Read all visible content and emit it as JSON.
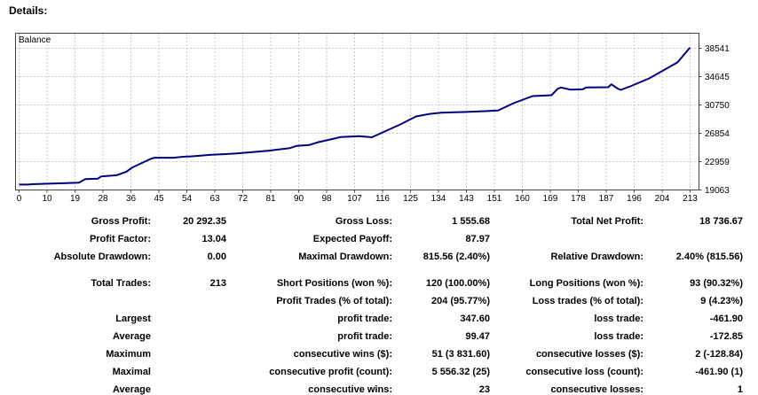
{
  "header": {
    "title": "Details:"
  },
  "chart_data": {
    "type": "line",
    "title": "Balance",
    "legend": "Balance",
    "line_color": "#000080",
    "grid": true,
    "x_ticks": [
      0,
      10,
      19,
      28,
      36,
      45,
      54,
      63,
      72,
      81,
      90,
      98,
      107,
      116,
      125,
      134,
      143,
      151,
      160,
      169,
      178,
      187,
      196,
      204,
      213
    ],
    "y_ticks": [
      38541,
      34645,
      30750,
      26854,
      22959,
      19063
    ],
    "xlabel": "",
    "ylabel": "",
    "x_range": [
      0,
      213
    ],
    "y_range": [
      19063,
      38541
    ],
    "points": [
      [
        0,
        19800
      ],
      [
        3,
        19800
      ],
      [
        4,
        19860
      ],
      [
        8,
        19915
      ],
      [
        14,
        19990
      ],
      [
        19,
        20060
      ],
      [
        21,
        20550
      ],
      [
        25,
        20620
      ],
      [
        26,
        20910
      ],
      [
        31,
        21100
      ],
      [
        34,
        21560
      ],
      [
        36,
        22170
      ],
      [
        39,
        22780
      ],
      [
        42,
        23380
      ],
      [
        43,
        23495
      ],
      [
        49,
        23495
      ],
      [
        52,
        23630
      ],
      [
        55,
        23690
      ],
      [
        61,
        23900
      ],
      [
        64,
        23960
      ],
      [
        69,
        24080
      ],
      [
        74,
        24260
      ],
      [
        79,
        24440
      ],
      [
        83,
        24660
      ],
      [
        86,
        24820
      ],
      [
        88,
        25110
      ],
      [
        92,
        25235
      ],
      [
        95,
        25640
      ],
      [
        100,
        26120
      ],
      [
        102,
        26330
      ],
      [
        108,
        26450
      ],
      [
        112,
        26310
      ],
      [
        121,
        28070
      ],
      [
        126,
        29170
      ],
      [
        130,
        29495
      ],
      [
        134,
        29690
      ],
      [
        141,
        29775
      ],
      [
        148,
        29900
      ],
      [
        152,
        29980
      ],
      [
        157,
        30990
      ],
      [
        163,
        31970
      ],
      [
        169,
        32090
      ],
      [
        171,
        32980
      ],
      [
        172,
        33150
      ],
      [
        175,
        32860
      ],
      [
        179,
        32900
      ],
      [
        180,
        33150
      ],
      [
        187,
        33185
      ],
      [
        188,
        33590
      ],
      [
        190,
        33000
      ],
      [
        191,
        32820
      ],
      [
        194,
        33305
      ],
      [
        200,
        34400
      ],
      [
        205,
        35620
      ],
      [
        209,
        36600
      ],
      [
        213,
        38650
      ]
    ]
  },
  "table": {
    "rows": [
      {
        "l1": "Gross Profit:",
        "v1": "20 292.35",
        "l2": "Gross Loss:",
        "v2": "1 555.68",
        "l3": "Total Net Profit:",
        "v3": "18 736.67"
      },
      {
        "l1": "Profit Factor:",
        "v1": "13.04",
        "l2": "Expected Payoff:",
        "v2": "87.97",
        "l3": "",
        "v3": ""
      },
      {
        "l1": "Absolute Drawdown:",
        "v1": "0.00",
        "l2": "Maximal Drawdown:",
        "v2": "815.56 (2.40%)",
        "l3": "Relative Drawdown:",
        "v3": "2.40% (815.56)"
      },
      {
        "l1": "Total Trades:",
        "v1": "213",
        "l2": "Short Positions (won %):",
        "v2": "120 (100.00%)",
        "l3": "Long Positions (won %):",
        "v3": "93 (90.32%)"
      },
      {
        "l1": "",
        "v1": "",
        "l2": "Profit Trades (% of total):",
        "v2": "204 (95.77%)",
        "l3": "Loss trades (% of total):",
        "v3": "9 (4.23%)"
      },
      {
        "l1": "Largest",
        "v1": "",
        "l2": "profit trade:",
        "v2": "347.60",
        "l3": "loss trade:",
        "v3": "-461.90"
      },
      {
        "l1": "Average",
        "v1": "",
        "l2": "profit trade:",
        "v2": "99.47",
        "l3": "loss trade:",
        "v3": "-172.85"
      },
      {
        "l1": "Maximum",
        "v1": "",
        "l2": "consecutive wins ($):",
        "v2": "51 (3 831.60)",
        "l3": "consecutive losses ($):",
        "v3": "2 (-128.84)"
      },
      {
        "l1": "Maximal",
        "v1": "",
        "l2": "consecutive profit (count):",
        "v2": "5 556.32 (25)",
        "l3": "consecutive loss (count):",
        "v3": "-461.90 (1)"
      },
      {
        "l1": "Average",
        "v1": "",
        "l2": "consecutive wins:",
        "v2": "23",
        "l3": "consecutive losses:",
        "v3": "1"
      }
    ]
  },
  "colors": {
    "line": "#000080",
    "grid": "#c9c9c9",
    "border": "#444444",
    "text": "#000000"
  }
}
